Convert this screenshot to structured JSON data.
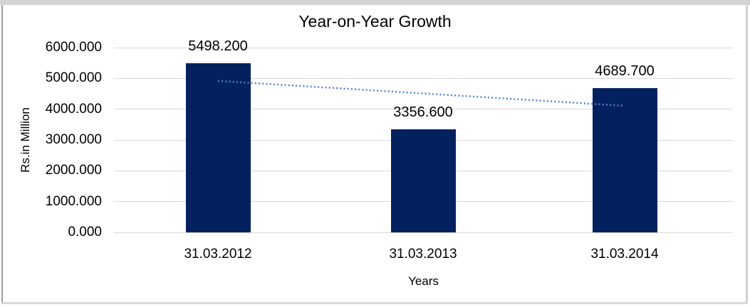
{
  "chart_data": {
    "type": "bar",
    "title": "Year-on-Year Growth",
    "categories": [
      "31.03.2012",
      "31.03.2013",
      "31.03.2014"
    ],
    "values": [
      5498.2,
      3356.6,
      4689.7
    ],
    "data_labels": [
      "5498.200",
      "3356.600",
      "4689.700"
    ],
    "xlabel": "Years",
    "ylabel": "Rs.in Million",
    "ylim": [
      0,
      6000
    ],
    "ytick_step": 1000,
    "ytick_labels": [
      "0.000",
      "1000.000",
      "2000.000",
      "3000.000",
      "4000.000",
      "5000.000",
      "6000.000"
    ],
    "grid": true,
    "legend": "none",
    "bar_color": "#02215E",
    "gridline_color": "#D9D9D9",
    "trendline": {
      "type": "linear",
      "style": "dotted",
      "color": "#4E86D0"
    }
  }
}
